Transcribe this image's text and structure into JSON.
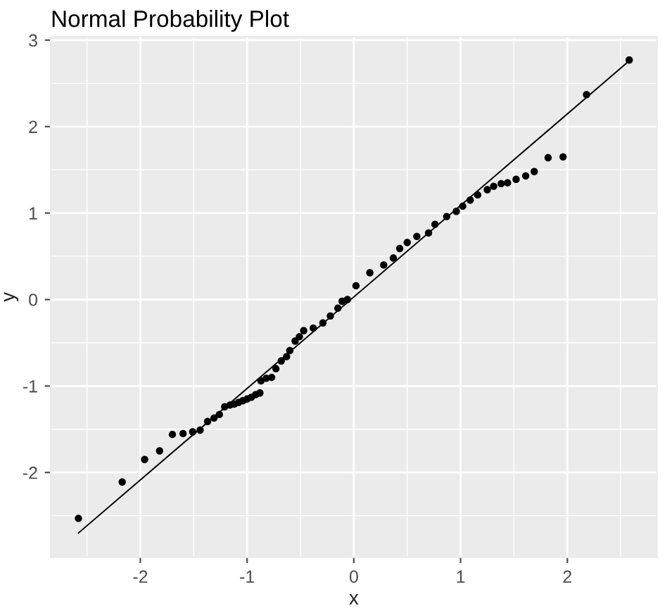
{
  "chart_data": {
    "type": "scatter",
    "title": "Normal Probability Plot",
    "xlabel": "x",
    "ylabel": "y",
    "xlim": [
      -2.84,
      2.84
    ],
    "ylim": [
      -2.98,
      3.04
    ],
    "xticks": [
      -2,
      -1,
      0,
      1,
      2
    ],
    "yticks": [
      -2,
      -1,
      0,
      1,
      2,
      3
    ],
    "grid": true,
    "legend": false,
    "series": [
      {
        "color": "#000000",
        "marker": "circle",
        "x": [
          -2.58,
          -2.17,
          -1.96,
          -1.82,
          -1.7,
          -1.6,
          -1.51,
          -1.44,
          -1.37,
          -1.31,
          -1.26,
          -1.21,
          -1.16,
          -1.12,
          -1.08,
          -1.04,
          -1.0,
          -0.96,
          -0.92,
          -0.88,
          -0.87,
          -0.82,
          -0.77,
          -0.73,
          -0.68,
          -0.63,
          -0.6,
          -0.55,
          -0.51,
          -0.47,
          -0.38,
          -0.29,
          -0.22,
          -0.15,
          -0.06,
          -0.11,
          0.02,
          0.15,
          0.28,
          0.37,
          0.43,
          0.5,
          0.59,
          0.7,
          0.76,
          0.87,
          0.96,
          1.02,
          1.09,
          1.16,
          1.25,
          1.31,
          1.38,
          1.44,
          1.52,
          1.61,
          1.69,
          1.82,
          1.96,
          2.18,
          2.58
        ],
        "values": [
          -2.53,
          -2.11,
          -1.85,
          -1.75,
          -1.56,
          -1.55,
          -1.53,
          -1.51,
          -1.41,
          -1.37,
          -1.33,
          -1.24,
          -1.22,
          -1.21,
          -1.19,
          -1.17,
          -1.15,
          -1.13,
          -1.1,
          -1.08,
          -0.94,
          -0.91,
          -0.9,
          -0.8,
          -0.71,
          -0.66,
          -0.59,
          -0.48,
          -0.43,
          -0.36,
          -0.33,
          -0.27,
          -0.19,
          -0.1,
          0.0,
          -0.02,
          0.16,
          0.31,
          0.4,
          0.48,
          0.59,
          0.66,
          0.73,
          0.77,
          0.87,
          0.96,
          1.02,
          1.08,
          1.15,
          1.21,
          1.27,
          1.31,
          1.34,
          1.35,
          1.39,
          1.43,
          1.48,
          1.64,
          1.65,
          2.37,
          2.77
        ]
      },
      {
        "type": "line",
        "color": "#000000",
        "line_style": "solid",
        "marker": "none",
        "x": [
          -2.58,
          2.58
        ],
        "values": [
          -2.7,
          2.76
        ]
      }
    ]
  }
}
